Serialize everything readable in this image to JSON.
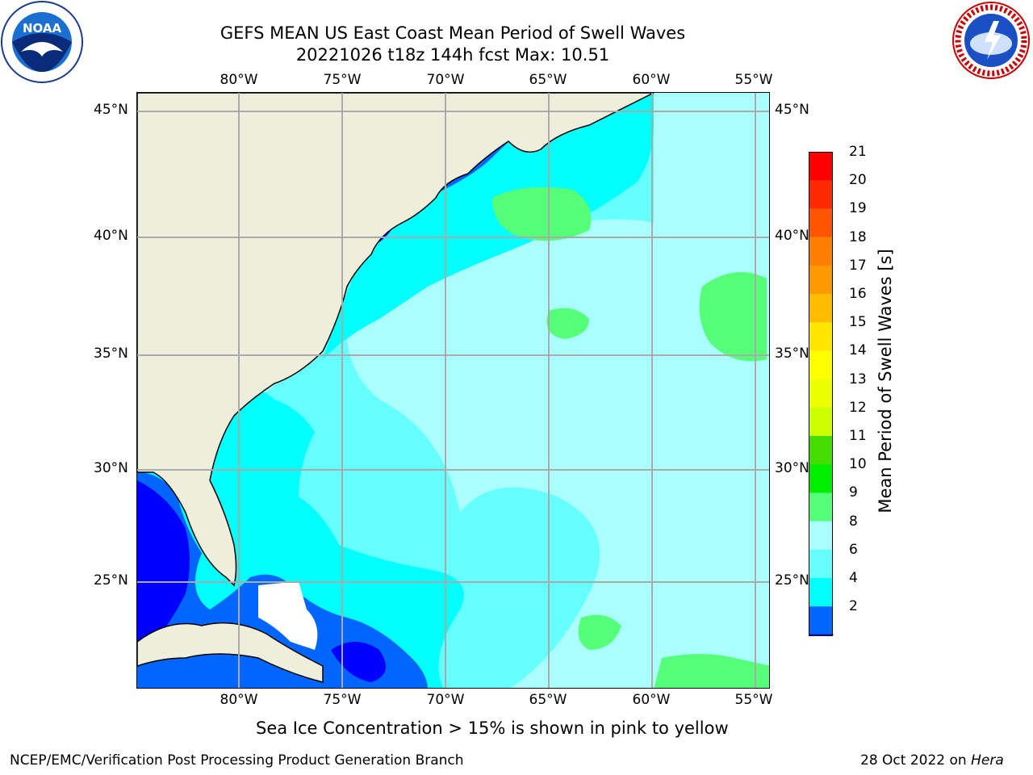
{
  "title": {
    "line1": "GEFS MEAN US East Coast Mean Period of Swell Waves",
    "line2": "20221026 t18z 144h fcst   Max: 10.51"
  },
  "map": {
    "lon_labels": [
      "80°W",
      "75°W",
      "70°W",
      "65°W",
      "60°W",
      "55°W"
    ],
    "lat_labels": [
      "45°N",
      "40°N",
      "35°N",
      "30°N",
      "25°N"
    ],
    "colors": {
      "land": "#eeeedc",
      "ice_free_masked": "#ffffff",
      "c2_4": "#0000ff",
      "c4_6": "#0066ff",
      "c6_8": "#00ffff",
      "c8_9": "#66ffff",
      "c9_10": "#aaffff",
      "c10_11": "#55ff77",
      "gridline": "#aaaaaa"
    }
  },
  "colorbar": {
    "label": "Mean Period of Swell Waves [s]",
    "ticks": [
      "21",
      "20",
      "19",
      "18",
      "17",
      "16",
      "15",
      "14",
      "13",
      "12",
      "11",
      "10",
      "9",
      "8",
      "6",
      "4",
      "2"
    ],
    "colors": [
      "#ff0000",
      "#ff2a00",
      "#ff5500",
      "#ff7f00",
      "#ff9900",
      "#ffbb00",
      "#ffe600",
      "#ffff00",
      "#eeff00",
      "#ccff00",
      "#44dd00",
      "#00ee00",
      "#55ff77",
      "#aaffff",
      "#66ffff",
      "#00ffff",
      "#0066ff"
    ],
    "under_color": "#0000ff"
  },
  "notes": {
    "ice": "Sea Ice Concentration > 15% is shown in pink to yellow"
  },
  "footer": {
    "left": "NCEP/EMC/Verification Post Processing Product Generation Branch",
    "date": "28 Oct 2022 on ",
    "host": "Hera"
  },
  "logos": {
    "left": "noaa-logo",
    "right": "nws-logo",
    "noaa_text": "NOAA",
    "nws_text": "NATIONAL WEATHER SERVICE"
  }
}
